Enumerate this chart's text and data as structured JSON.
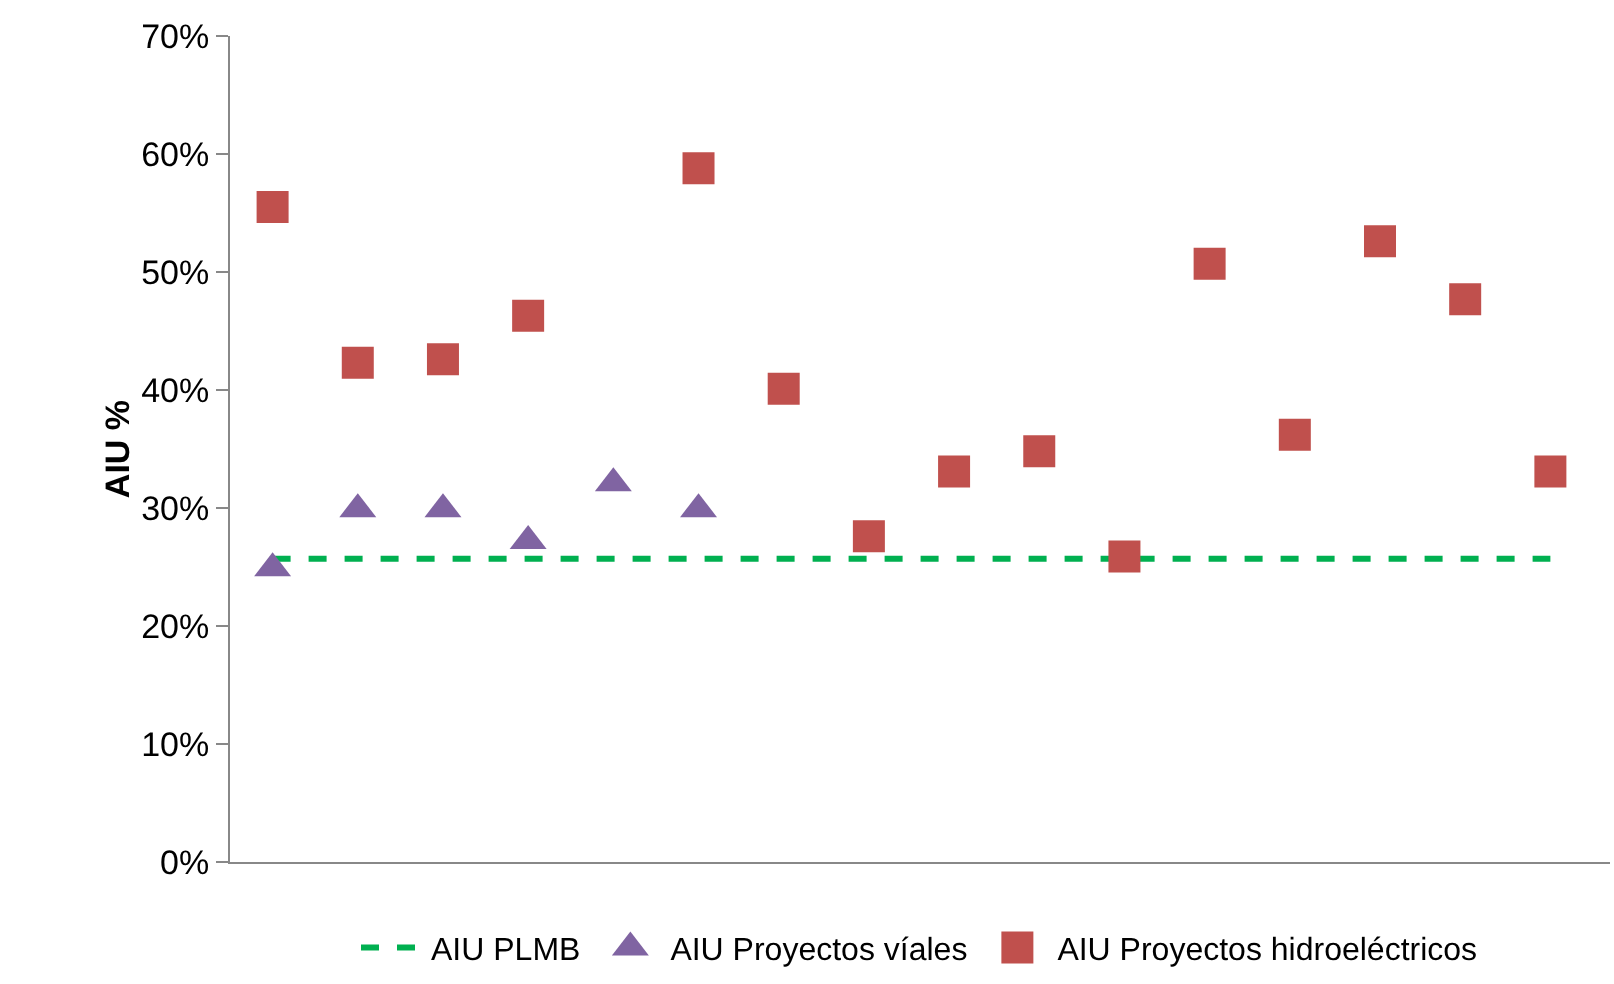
{
  "chart_data": {
    "type": "scatter",
    "ylabel": "AIU %",
    "categories": [
      null,
      null,
      null,
      null,
      null,
      null,
      null,
      null,
      null,
      null,
      null,
      null,
      null,
      null,
      null,
      null
    ],
    "series": [
      {
        "name": "AIU PLMB",
        "type": "line",
        "color": "#00b050",
        "line_style": "dashed",
        "marker": "none",
        "values": [
          25.7,
          25.7,
          25.7,
          25.7,
          25.7,
          25.7,
          25.7,
          25.7,
          25.7,
          25.7,
          25.7,
          25.7,
          25.7,
          25.7,
          25.7,
          25.7
        ]
      },
      {
        "name": "AIU Proyectos víales",
        "color": "#8064a2",
        "marker": "triangle",
        "values": [
          24.9,
          29.9,
          29.9,
          27.2,
          32.1,
          29.9,
          null,
          null,
          null,
          null,
          null,
          null,
          null,
          null,
          null,
          null
        ]
      },
      {
        "name": "AIU Proyectos hidroeléctricos",
        "color": "#c0504d",
        "marker": "square",
        "values": [
          55.5,
          42.3,
          42.6,
          46.3,
          null,
          58.8,
          40.1,
          27.6,
          33.1,
          34.8,
          25.9,
          50.7,
          36.2,
          52.6,
          47.7,
          33.1
        ]
      }
    ],
    "ylim": [
      0,
      70
    ],
    "yticks": [
      {
        "value": 0,
        "label": "0%"
      },
      {
        "value": 10,
        "label": "10%"
      },
      {
        "value": 20,
        "label": "20%"
      },
      {
        "value": 30,
        "label": "30%"
      },
      {
        "value": 40,
        "label": "40%"
      },
      {
        "value": 50,
        "label": "50%"
      },
      {
        "value": 60,
        "label": "60%"
      },
      {
        "value": 70,
        "label": "70%"
      }
    ],
    "grid": false,
    "legend": "bottom",
    "tick_labels": "y"
  }
}
